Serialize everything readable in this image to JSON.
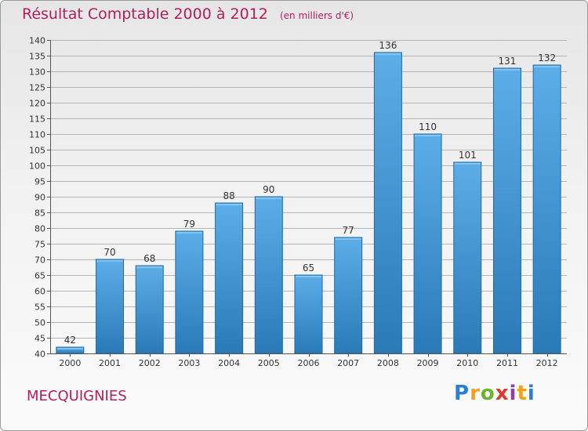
{
  "header": {
    "title": "Résultat Comptable 2000 à 2012",
    "unit": "(en milliers d'€)"
  },
  "footer": {
    "commune": "MECQUIGNIES",
    "logo": {
      "text": "Proxiti",
      "colors": [
        "#2a7fd4",
        "#f0a21c",
        "#6cb42c",
        "#e2382b",
        "#8a3fa8",
        "#f0a21c",
        "#2a7fd4"
      ]
    }
  },
  "colors": {
    "title": "#b0215c",
    "bar_light": "#5dade8",
    "bar_dark": "#2a7ab8",
    "bar_edge": "#1f6aa5",
    "grid": "#b5b5b5"
  },
  "chart_data": {
    "type": "bar",
    "title": "Résultat Comptable 2000 à 2012",
    "subtitle": "(en milliers d'€)",
    "xlabel": "",
    "ylabel": "",
    "categories": [
      "2000",
      "2001",
      "2002",
      "2003",
      "2004",
      "2005",
      "2006",
      "2007",
      "2008",
      "2009",
      "2010",
      "2011",
      "2012"
    ],
    "values": [
      42,
      70,
      68,
      79,
      88,
      90,
      65,
      77,
      136,
      110,
      101,
      131,
      132
    ],
    "ylim": [
      40,
      140
    ],
    "ytick_step": 5,
    "grid": true,
    "data_labels": true
  }
}
